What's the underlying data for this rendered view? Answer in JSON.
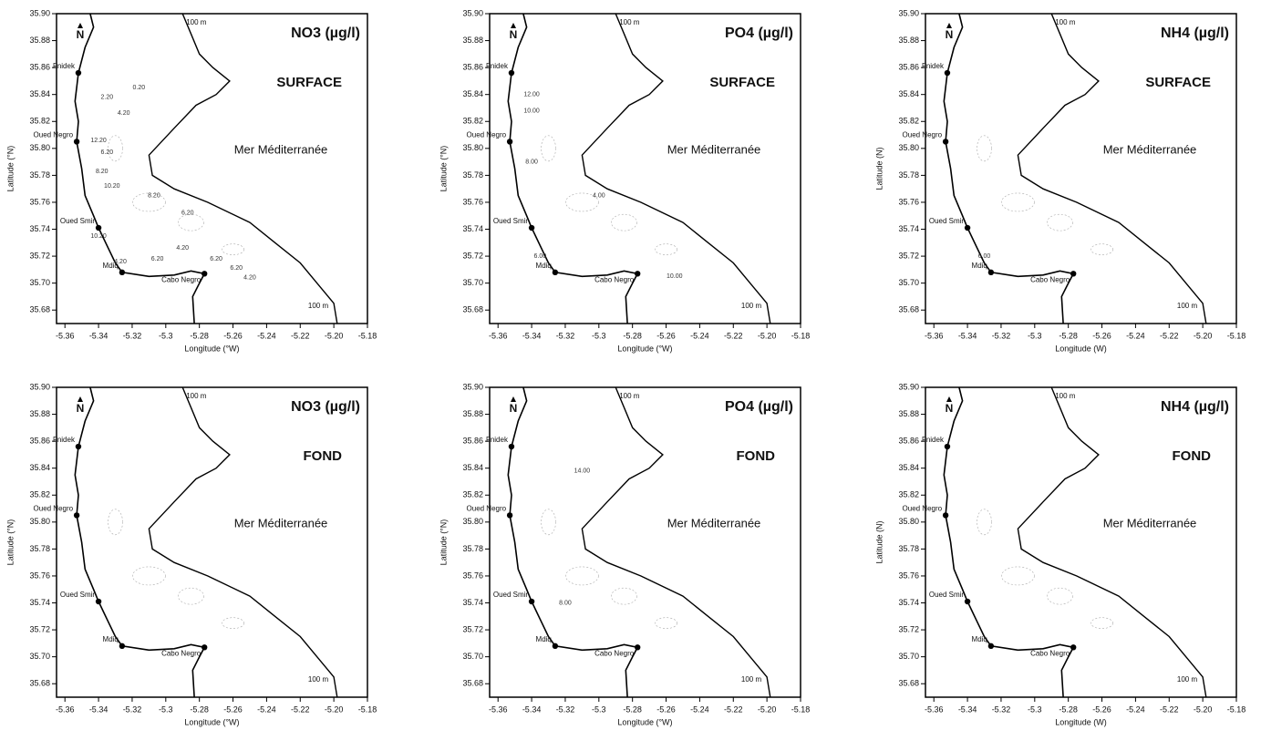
{
  "axes": {
    "xlim": [
      -5.365,
      -5.18
    ],
    "ylim": [
      35.67,
      35.9
    ],
    "xticks": [
      -5.36,
      -5.34,
      -5.32,
      -5.3,
      -5.28,
      -5.26,
      -5.24,
      -5.22,
      {
        "value": -5.2,
        "label": "-5.20"
      },
      -5.18
    ],
    "yticks": [
      {
        "value": 35.68,
        "label": "35.68"
      },
      {
        "value": 35.7,
        "label": "35.70"
      },
      35.72,
      35.74,
      35.76,
      35.78,
      {
        "value": 35.8,
        "label": "35.80"
      },
      35.82,
      35.84,
      35.86,
      35.88,
      {
        "value": 35.9,
        "label": "35.90"
      }
    ]
  },
  "panels": [
    {
      "parameter": "NO3 (µg/l)",
      "layer": "SURFACE",
      "x_label": "Longitude (°W)",
      "y_label": "Latitude (°N)",
      "north": "N",
      "sea_label": "Mer Méditerranée",
      "isobath_labels": [
        "100 m",
        "100 m"
      ],
      "places": [
        "Fnidek",
        "Oued Negro",
        "Oued Smir",
        "Mdiq",
        "Cabo Negro"
      ],
      "contour_labels": [
        "2.20",
        "0.20",
        "4.20",
        "12.20",
        "6.20",
        "8.20",
        "10.20",
        "8.20",
        "6.20",
        "10.20",
        "4.20",
        "6.20",
        "6.20",
        "6.20",
        "4.20",
        "4.20"
      ]
    },
    {
      "parameter": "PO4 (µg/l)",
      "layer": "SURFACE",
      "x_label": "Longitude (°W)",
      "y_label": "Latitude (°N)",
      "north": "N",
      "sea_label": "Mer Méditerranée",
      "isobath_labels": [
        "100 m",
        "100 m"
      ],
      "places": [
        "Fnidek",
        "Oued Negro",
        "Oued Smir",
        "Mdiq",
        "Cabo Negro"
      ],
      "contour_labels": [
        "12.00",
        "10.00",
        "8.00",
        "4.00",
        "6.00",
        "10.00"
      ]
    },
    {
      "parameter": "NH4 (µg/l)",
      "layer": "SURFACE",
      "x_label": "Longitude (W)",
      "y_label": "Latitude (N)",
      "north": "N",
      "sea_label": "Mer Méditerranée",
      "isobath_labels": [
        "100 m",
        "100 m"
      ],
      "places": [
        "Fnidek",
        "Oued Negro",
        "Oued Smir",
        "Mdiq",
        "Cabo Negro"
      ],
      "contour_labels": [
        "6.00"
      ]
    },
    {
      "parameter": "NO3 (µg/l)",
      "layer": "FOND",
      "x_label": "Longitude (°W)",
      "y_label": "Latitude (°N)",
      "north": "N",
      "sea_label": "Mer Méditerranée",
      "isobath_labels": [
        "100 m",
        "100 m"
      ],
      "places": [
        "Fnidek",
        "Oued Negro",
        "Oued Smir",
        "Mdiq",
        "Cabo Negro"
      ],
      "contour_labels": []
    },
    {
      "parameter": "PO4 (µg/l)",
      "layer": "FOND",
      "x_label": "Longitude (°W)",
      "y_label": "Latitude (°N)",
      "north": "N",
      "sea_label": "Mer Méditerranée",
      "isobath_labels": [
        "100 m",
        "100 m"
      ],
      "places": [
        "Fnidek",
        "Oued Negro",
        "Oued Smir",
        "Mdiq",
        "Cabo Negro"
      ],
      "contour_labels": [
        "14.00",
        "8.00"
      ]
    },
    {
      "parameter": "NH4 (µg/l)",
      "layer": "FOND",
      "x_label": "Longitude (W)",
      "y_label": "Latitude (N)",
      "north": "N",
      "sea_label": "Mer Méditerranée",
      "isobath_labels": [
        "100 m",
        "100 m"
      ],
      "places": [
        "Fnidek",
        "Oued Negro",
        "Oued Smir",
        "Mdiq",
        "Cabo Negro"
      ],
      "contour_labels": []
    }
  ]
}
